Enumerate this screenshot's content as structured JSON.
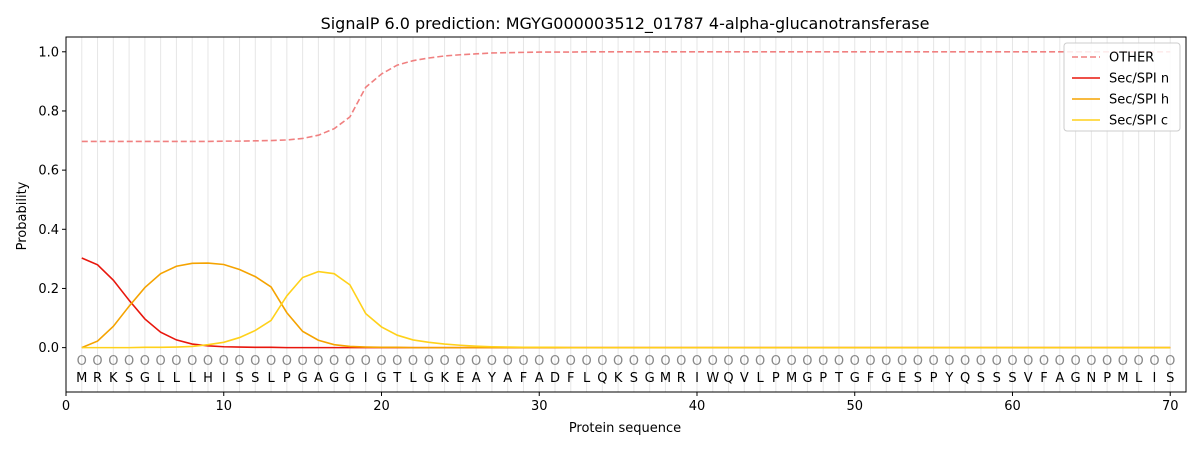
{
  "chart_data": {
    "type": "line",
    "title": "SignalP 6.0 prediction: MGYG000003512_01787 4-alpha-glucanotransferase",
    "xlabel": "Protein sequence",
    "ylabel": "Probability",
    "xlim": [
      0,
      71
    ],
    "ylim": [
      -0.15,
      1.05
    ],
    "grid": "vertical lines at every residue",
    "legend_position": "top-right",
    "x_ticks": [
      0,
      10,
      20,
      30,
      40,
      50,
      60,
      70
    ],
    "y_ticks": [
      0.0,
      0.2,
      0.4,
      0.6,
      0.8,
      1.0
    ],
    "sequence": "MRKSGLLLHISSLPGAGGIGTLGKEAYAFADFLQKSGMRIWQVLPMGPTGFGESPYQSSSVFAGNPMLIS",
    "region_labels": "OOOOOOOOOOOOOOOOOOOOOOOOOOOOOOOOOOOOOOOOOOOOOOOOOOOOOOOOOOOOOOOOOOOOOO",
    "series": [
      {
        "name": "OTHER",
        "color": "#f08080",
        "dash": "dashed",
        "values": [
          0.697,
          0.697,
          0.697,
          0.697,
          0.697,
          0.697,
          0.697,
          0.697,
          0.697,
          0.698,
          0.698,
          0.699,
          0.7,
          0.702,
          0.707,
          0.718,
          0.74,
          0.78,
          0.88,
          0.925,
          0.955,
          0.97,
          0.979,
          0.986,
          0.99,
          0.993,
          0.996,
          0.997,
          0.998,
          0.999,
          0.999,
          0.999,
          1.0,
          1.0,
          1.0,
          1.0,
          1.0,
          1.0,
          1.0,
          1.0,
          1.0,
          1.0,
          1.0,
          1.0,
          1.0,
          1.0,
          1.0,
          1.0,
          1.0,
          1.0,
          1.0,
          1.0,
          1.0,
          1.0,
          1.0,
          1.0,
          1.0,
          1.0,
          1.0,
          1.0,
          1.0,
          1.0,
          1.0,
          1.0,
          1.0,
          1.0,
          1.0,
          1.0,
          1.0,
          1.0
        ]
      },
      {
        "name": "Sec/SPI n",
        "color": "#e8160c",
        "dash": "solid",
        "values": [
          0.303,
          0.28,
          0.228,
          0.16,
          0.097,
          0.052,
          0.026,
          0.012,
          0.006,
          0.003,
          0.002,
          0.001,
          0.001,
          0.0,
          0.0,
          0.0,
          0.0,
          0.0,
          0.0,
          0.0,
          0.0,
          0.0,
          0.0,
          0.0,
          0.0,
          0.0,
          0.0,
          0.0,
          0.0,
          0.0,
          0.0,
          0.0,
          0.0,
          0.0,
          0.0,
          0.0,
          0.0,
          0.0,
          0.0,
          0.0,
          0.0,
          0.0,
          0.0,
          0.0,
          0.0,
          0.0,
          0.0,
          0.0,
          0.0,
          0.0,
          0.0,
          0.0,
          0.0,
          0.0,
          0.0,
          0.0,
          0.0,
          0.0,
          0.0,
          0.0,
          0.0,
          0.0,
          0.0,
          0.0,
          0.0,
          0.0,
          0.0,
          0.0,
          0.0,
          0.0
        ]
      },
      {
        "name": "Sec/SPI h",
        "color": "#f5a300",
        "dash": "solid",
        "values": [
          0.0,
          0.022,
          0.072,
          0.14,
          0.203,
          0.25,
          0.275,
          0.285,
          0.286,
          0.281,
          0.264,
          0.24,
          0.205,
          0.118,
          0.055,
          0.025,
          0.01,
          0.004,
          0.002,
          0.001,
          0.001,
          0.0,
          0.0,
          0.0,
          0.0,
          0.0,
          0.0,
          0.0,
          0.0,
          0.0,
          0.0,
          0.0,
          0.0,
          0.0,
          0.0,
          0.0,
          0.0,
          0.0,
          0.0,
          0.0,
          0.0,
          0.0,
          0.0,
          0.0,
          0.0,
          0.0,
          0.0,
          0.0,
          0.0,
          0.0,
          0.0,
          0.0,
          0.0,
          0.0,
          0.0,
          0.0,
          0.0,
          0.0,
          0.0,
          0.0,
          0.0,
          0.0,
          0.0,
          0.0,
          0.0,
          0.0,
          0.0,
          0.0,
          0.0,
          0.0
        ]
      },
      {
        "name": "Sec/SPI c",
        "color": "#ffd11a",
        "dash": "solid",
        "values": [
          0.0,
          0.0,
          0.0,
          0.0,
          0.001,
          0.001,
          0.002,
          0.004,
          0.01,
          0.018,
          0.034,
          0.058,
          0.092,
          0.175,
          0.237,
          0.257,
          0.25,
          0.212,
          0.115,
          0.07,
          0.042,
          0.026,
          0.018,
          0.012,
          0.008,
          0.005,
          0.003,
          0.002,
          0.001,
          0.001,
          0.001,
          0.0,
          0.0,
          0.0,
          0.0,
          0.0,
          0.0,
          0.0,
          0.0,
          0.0,
          0.0,
          0.0,
          0.0,
          0.0,
          0.0,
          0.0,
          0.0,
          0.0,
          0.0,
          0.0,
          0.0,
          0.0,
          0.0,
          0.0,
          0.0,
          0.0,
          0.0,
          0.0,
          0.0,
          0.0,
          0.0,
          0.0,
          0.0,
          0.0,
          0.0,
          0.0,
          0.0,
          0.0,
          0.0,
          0.0
        ]
      }
    ]
  }
}
